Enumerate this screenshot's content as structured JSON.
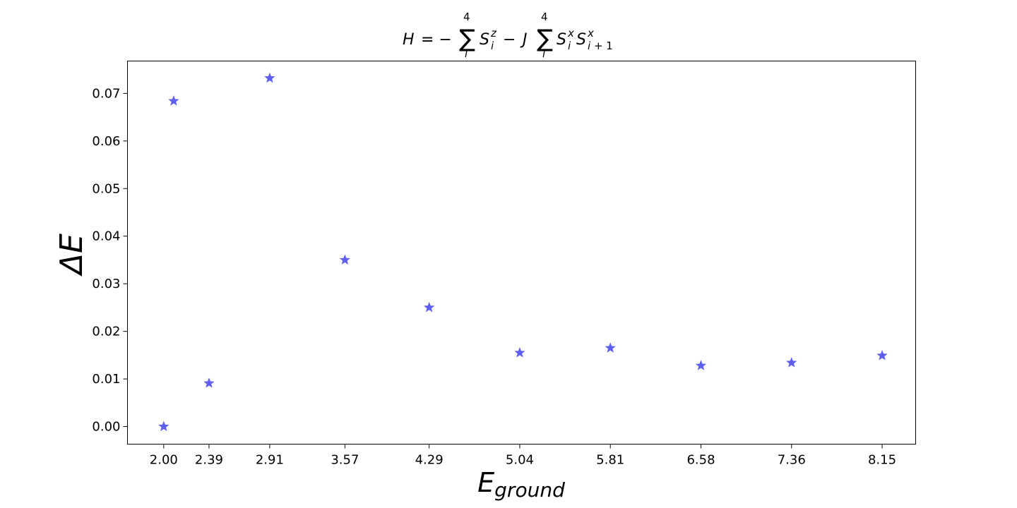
{
  "chart_data": {
    "type": "scatter",
    "title": "H = −∑ᵢ⁴ Sᵢᶻ − J ∑ᵢ⁴ Sᵢˣ Sˣᵢ₊₁",
    "xlabel": "E",
    "xlabel_subscript": "ground",
    "ylabel": "ΔE",
    "xlim": [
      1.6,
      10.3
    ],
    "ylim": [
      -0.0037,
      0.0768
    ],
    "grid": false,
    "marker": "star",
    "marker_color": "#5555ee",
    "x_tick_values": [
      2.0,
      2.5,
      3.17,
      4.0,
      4.93,
      5.93,
      6.93,
      7.93,
      8.93,
      9.93
    ],
    "x_tick_labels": [
      "2.00",
      "2.39",
      "2.91",
      "3.57",
      "4.29",
      "5.04",
      "5.81",
      "6.58",
      "7.36",
      "8.15"
    ],
    "y_ticks": [
      0.0,
      0.01,
      0.02,
      0.03,
      0.04,
      0.05,
      0.06,
      0.07
    ],
    "y_tick_labels": [
      "0.00",
      "0.01",
      "0.02",
      "0.03",
      "0.04",
      "0.05",
      "0.06",
      "0.07"
    ],
    "points": [
      {
        "x": 2.0,
        "y": 0.0
      },
      {
        "x": 2.11,
        "y": 0.0684
      },
      {
        "x": 2.5,
        "y": 0.0091
      },
      {
        "x": 3.17,
        "y": 0.0732
      },
      {
        "x": 4.0,
        "y": 0.035
      },
      {
        "x": 4.93,
        "y": 0.025
      },
      {
        "x": 5.93,
        "y": 0.0155
      },
      {
        "x": 6.93,
        "y": 0.0165
      },
      {
        "x": 7.93,
        "y": 0.0128
      },
      {
        "x": 8.93,
        "y": 0.0134
      },
      {
        "x": 9.93,
        "y": 0.0149
      }
    ]
  }
}
